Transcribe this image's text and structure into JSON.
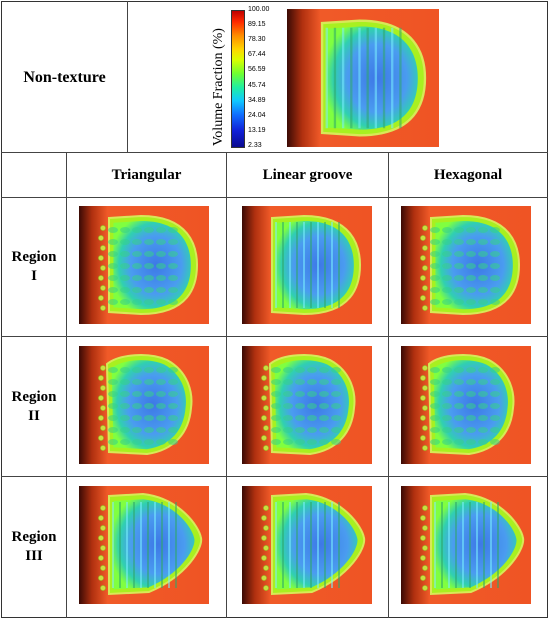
{
  "header": {
    "row_label": "Non-texture"
  },
  "columns": [
    {
      "label": "Triangular"
    },
    {
      "label": "Linear groove"
    },
    {
      "label": "Hexagonal"
    }
  ],
  "rows": [
    {
      "label_line1": "Region",
      "label_line2": "I"
    },
    {
      "label_line1": "Region",
      "label_line2": "II"
    },
    {
      "label_line1": "Region",
      "label_line2": "III"
    }
  ],
  "colorbar": {
    "title": "Volume Fraction (%)",
    "ticks": [
      "100.00",
      "89.15",
      "78.30",
      "67.44",
      "56.59",
      "45.74",
      "34.89",
      "24.04",
      "13.19",
      "2.33"
    ]
  },
  "colors": {
    "background_red": "#f05a28",
    "dark_edge": "#3a0a05",
    "blue_core": "#3d78e6"
  }
}
